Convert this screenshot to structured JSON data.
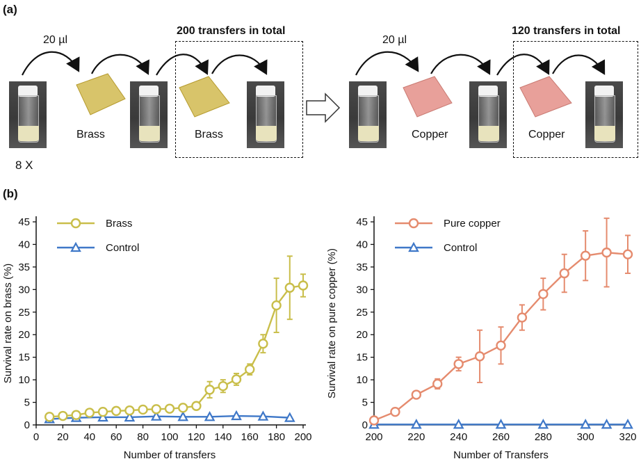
{
  "panel_a": {
    "label": "(a)",
    "left": {
      "volume": "20 µl",
      "box_title": "200 transfers in total",
      "plate_label_1": "Brass",
      "plate_label_2": "Brass",
      "multiplier": "8 X",
      "plate_color": "#d8c46a"
    },
    "right": {
      "volume": "20 µl",
      "box_title": "120 transfers in total",
      "plate_label_1": "Copper",
      "plate_label_2": "Copper",
      "plate_color": "#e8a09a"
    }
  },
  "panel_b": {
    "label": "(b)"
  },
  "chart_data": [
    {
      "type": "line",
      "xlabel": "Number of transfers",
      "ylabel": "Survival rate on brass (%)",
      "xlim": [
        0,
        200
      ],
      "ylim": [
        0,
        45
      ],
      "xticks": [
        0,
        20,
        40,
        60,
        80,
        100,
        120,
        140,
        160,
        180,
        200
      ],
      "yticks": [
        0,
        5,
        10,
        15,
        20,
        25,
        30,
        35,
        40,
        45
      ],
      "legend_position": "top-left",
      "series": [
        {
          "name": "Brass",
          "color": "#c9be4a",
          "marker": "circle",
          "x": [
            10,
            20,
            30,
            40,
            50,
            60,
            70,
            80,
            90,
            100,
            110,
            120,
            130,
            140,
            150,
            160,
            170,
            180,
            190,
            200
          ],
          "y": [
            1.8,
            2.0,
            2.2,
            2.7,
            2.9,
            3.1,
            3.2,
            3.4,
            3.5,
            3.6,
            3.8,
            4.2,
            7.8,
            8.6,
            10.1,
            12.3,
            18.0,
            26.5,
            30.4,
            30.9
          ],
          "err": [
            0.3,
            0.3,
            0.3,
            0.4,
            0.4,
            0.4,
            0.4,
            0.4,
            0.4,
            0.5,
            0.5,
            0.6,
            1.8,
            1.4,
            1.3,
            1.2,
            2.0,
            6.0,
            7.0,
            2.5
          ]
        },
        {
          "name": "Control",
          "color": "#3f78c8",
          "marker": "triangle",
          "x": [
            10,
            30,
            50,
            70,
            90,
            110,
            130,
            150,
            170,
            190
          ],
          "y": [
            1.3,
            1.6,
            1.7,
            1.7,
            1.9,
            1.8,
            1.8,
            2.0,
            1.9,
            1.6
          ],
          "err": []
        }
      ]
    },
    {
      "type": "line",
      "xlabel": "Number of Transfers",
      "ylabel": "Survival rate on pure copper (%)",
      "xlim": [
        200,
        320
      ],
      "ylim": [
        0,
        45
      ],
      "xticks": [
        200,
        220,
        240,
        260,
        280,
        300,
        320
      ],
      "yticks": [
        0,
        5,
        10,
        15,
        20,
        25,
        30,
        35,
        40,
        45
      ],
      "legend_position": "top-left",
      "series": [
        {
          "name": "Pure copper",
          "color": "#e58b6e",
          "marker": "circle",
          "x": [
            200,
            210,
            220,
            230,
            240,
            250,
            260,
            270,
            280,
            290,
            300,
            310,
            320
          ],
          "y": [
            1.0,
            2.9,
            6.7,
            9.1,
            13.5,
            15.2,
            17.6,
            23.8,
            29.0,
            33.6,
            37.5,
            38.2,
            37.8
          ],
          "err": [
            0.3,
            0.4,
            0.6,
            1.1,
            1.5,
            5.8,
            4.1,
            2.8,
            3.5,
            4.2,
            5.5,
            7.6,
            4.2
          ]
        },
        {
          "name": "Control",
          "color": "#3f78c8",
          "marker": "triangle",
          "x": [
            200,
            220,
            240,
            260,
            280,
            300,
            310,
            320
          ],
          "y": [
            0.1,
            0.1,
            0.1,
            0.1,
            0.1,
            0.1,
            0.1,
            0.1
          ],
          "err": []
        }
      ]
    }
  ]
}
